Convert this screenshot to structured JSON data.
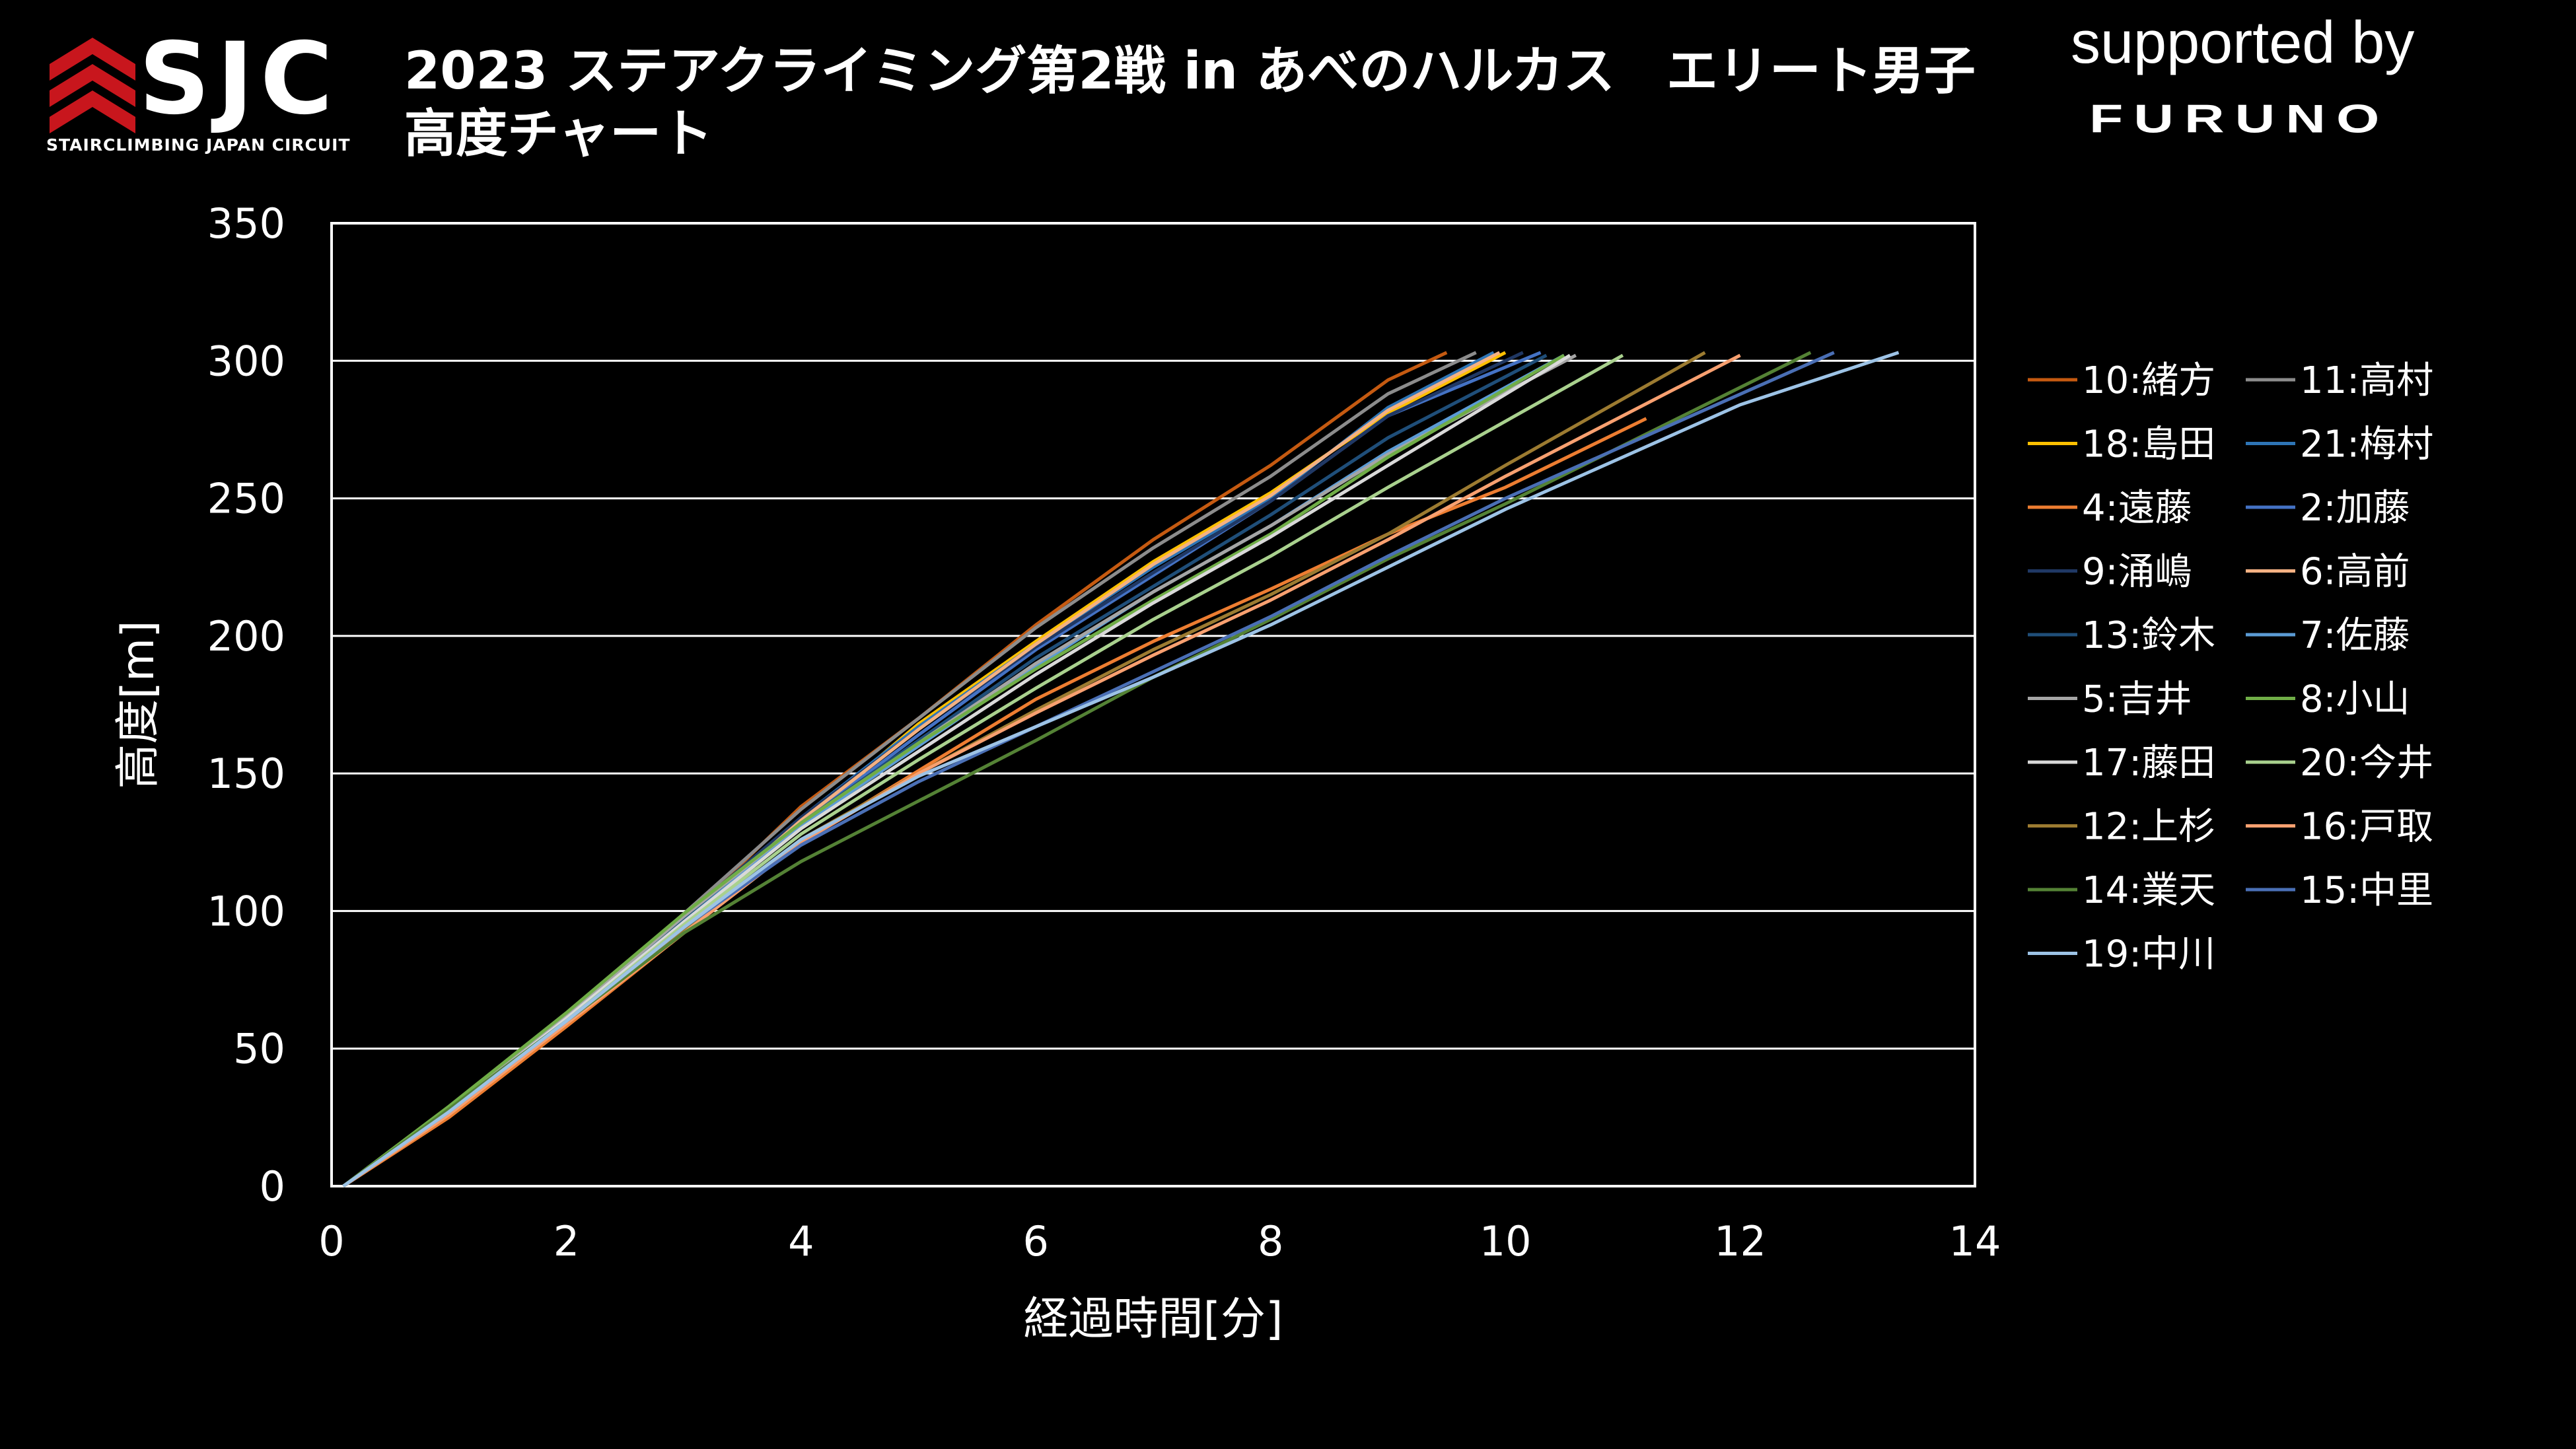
{
  "header": {
    "logo_text": "SJC",
    "logo_subtext": "STAIRCLIMBING JAPAN CIRCUIT",
    "title_line1": "2023 ステアクライミング第2戦 in あべのハルカス　エリート男子",
    "title_line2": "高度チャート",
    "supported_by": "supported by",
    "sponsor": "FURUNO"
  },
  "colors": {
    "background": "#000000",
    "logo_red": "#c8161d",
    "grid": "#ffffff",
    "text": "#ffffff"
  },
  "chart_data": {
    "type": "line",
    "title": "2023 ステアクライミング第2戦 in あべのハルカス　エリート男子 高度チャート",
    "xlabel": "経過時間[分]",
    "ylabel": "高度[m]",
    "xlim": [
      0,
      14
    ],
    "ylim": [
      0,
      350
    ],
    "xticks": [
      "0",
      "2",
      "4",
      "6",
      "8",
      "10",
      "12",
      "14"
    ],
    "yticks": [
      "0",
      "50",
      "100",
      "150",
      "200",
      "250",
      "300",
      "350"
    ],
    "grid": "horizontal",
    "legend_position": "right",
    "series": [
      {
        "name": "10:緒方",
        "color": "#c55a11",
        "x": [
          0.1,
          1,
          2,
          3,
          4,
          5,
          6,
          7,
          8,
          9,
          9.5
        ],
        "y": [
          0,
          26,
          60,
          97,
          138,
          170,
          204,
          235,
          262,
          293,
          303
        ]
      },
      {
        "name": "11:高村",
        "color": "#8c8c8c",
        "x": [
          0.1,
          1,
          2,
          3,
          4,
          5,
          6,
          7,
          8,
          9,
          9.75
        ],
        "y": [
          0,
          28,
          62,
          99,
          137,
          170,
          203,
          232,
          258,
          288,
          303
        ]
      },
      {
        "name": "18:島田",
        "color": "#ffc000",
        "x": [
          0.1,
          1,
          2,
          3,
          4,
          5,
          6,
          7,
          8,
          9,
          10.0
        ],
        "y": [
          0,
          27,
          60,
          95,
          132,
          168,
          198,
          227,
          252,
          281,
          303
        ]
      },
      {
        "name": "21:梅村",
        "color": "#2e75b6",
        "x": [
          0.1,
          1,
          2,
          3,
          4,
          5,
          6,
          7,
          8,
          9,
          9.9
        ],
        "y": [
          0,
          27,
          62,
          98,
          134,
          167,
          197,
          225,
          250,
          283,
          303
        ]
      },
      {
        "name": "4:遠藤",
        "color": "#ed7d31",
        "x": [
          0.1,
          1,
          2,
          3,
          4,
          5,
          6,
          7,
          8,
          9,
          10,
          11.2
        ],
        "y": [
          0,
          25,
          58,
          92,
          125,
          151,
          177,
          198,
          217,
          237,
          254,
          279
        ]
      },
      {
        "name": "2:加藤",
        "color": "#4472c4",
        "x": [
          0.1,
          1,
          2,
          3,
          4,
          5,
          6,
          7,
          8,
          9,
          10.3
        ],
        "y": [
          0,
          27,
          61,
          97,
          132,
          164,
          195,
          222,
          249,
          280,
          303
        ]
      },
      {
        "name": "9:涌嶋",
        "color": "#203864",
        "x": [
          0.1,
          1,
          2,
          3,
          4,
          5,
          6,
          7,
          8,
          9,
          10.15
        ],
        "y": [
          0,
          27,
          61,
          98,
          134,
          166,
          196,
          223,
          249,
          280,
          303
        ]
      },
      {
        "name": "6:高前",
        "color": "#f4b183",
        "x": [
          0.1,
          1,
          2,
          3,
          4,
          5,
          6,
          7,
          8,
          9,
          9.95
        ],
        "y": [
          0,
          26,
          60,
          96,
          133,
          166,
          197,
          226,
          251,
          282,
          303
        ]
      },
      {
        "name": "13:鈴木",
        "color": "#1f4e79",
        "x": [
          0.1,
          1,
          2,
          3,
          4,
          5,
          6,
          7,
          8,
          9,
          10.35
        ],
        "y": [
          0,
          27,
          61,
          97,
          132,
          162,
          192,
          218,
          244,
          272,
          302
        ]
      },
      {
        "name": "7:佐藤",
        "color": "#5b9bd5",
        "x": [
          0.1,
          1,
          2,
          3,
          4,
          5,
          6,
          7,
          8,
          9,
          10.5
        ],
        "y": [
          0,
          27,
          61,
          96,
          131,
          160,
          189,
          216,
          240,
          267,
          302
        ]
      },
      {
        "name": "5:吉井",
        "color": "#a5a5a5",
        "x": [
          0.1,
          1,
          2,
          3,
          4,
          5,
          6,
          7,
          8,
          9,
          10.6
        ],
        "y": [
          0,
          28,
          62,
          98,
          132,
          161,
          190,
          216,
          240,
          266,
          302
        ]
      },
      {
        "name": "8:小山",
        "color": "#70ad47",
        "x": [
          0.1,
          1,
          2,
          3,
          4,
          5,
          6,
          7,
          8,
          9,
          10.5
        ],
        "y": [
          0,
          29,
          63,
          99,
          132,
          161,
          188,
          213,
          237,
          265,
          302
        ]
      },
      {
        "name": "17:藤田",
        "color": "#d9d9d9",
        "x": [
          0.1,
          1,
          2,
          3,
          4,
          5,
          6,
          7,
          8,
          9,
          10.55
        ],
        "y": [
          0,
          27,
          61,
          96,
          130,
          158,
          186,
          212,
          236,
          262,
          302
        ]
      },
      {
        "name": "20:今井",
        "color": "#a9d18e",
        "x": [
          0.1,
          1,
          2,
          3,
          4,
          5,
          6,
          7,
          8,
          9,
          10,
          11.0
        ],
        "y": [
          0,
          27,
          60,
          95,
          128,
          155,
          181,
          206,
          229,
          254,
          278,
          302
        ]
      },
      {
        "name": "12:上杉",
        "color": "#9c7b31",
        "x": [
          0.1,
          1,
          2,
          3,
          4,
          5,
          6,
          7,
          8,
          9,
          10,
          11.7
        ],
        "y": [
          0,
          26,
          59,
          93,
          126,
          150,
          173,
          195,
          215,
          237,
          262,
          303
        ]
      },
      {
        "name": "16:戸取",
        "color": "#f8a070",
        "x": [
          0.1,
          1,
          2,
          3,
          4,
          5,
          6,
          7,
          8,
          9,
          10,
          12.0
        ],
        "y": [
          0,
          26,
          59,
          92,
          125,
          150,
          172,
          193,
          213,
          235,
          258,
          302
        ]
      },
      {
        "name": "14:業天",
        "color": "#548235",
        "x": [
          0.1,
          1,
          2,
          3,
          4,
          5,
          6,
          7,
          8,
          9,
          10,
          12.6
        ],
        "y": [
          0,
          28,
          60,
          92,
          118,
          140,
          162,
          185,
          206,
          228,
          248,
          303
        ]
      },
      {
        "name": "15:中里",
        "color": "#4a6fb5",
        "x": [
          0.1,
          1,
          2,
          3,
          4,
          5,
          6,
          7,
          8,
          9,
          10,
          12.8
        ],
        "y": [
          0,
          27,
          60,
          94,
          124,
          147,
          167,
          187,
          207,
          229,
          250,
          303
        ]
      },
      {
        "name": "19:中川",
        "color": "#9dc3e6",
        "x": [
          0.1,
          1,
          2,
          3,
          4,
          5,
          6,
          7,
          8,
          9,
          10,
          11,
          12,
          13.35
        ],
        "y": [
          0,
          27,
          60,
          94,
          126,
          149,
          167,
          185,
          204,
          225,
          246,
          265,
          284,
          303
        ]
      }
    ]
  }
}
